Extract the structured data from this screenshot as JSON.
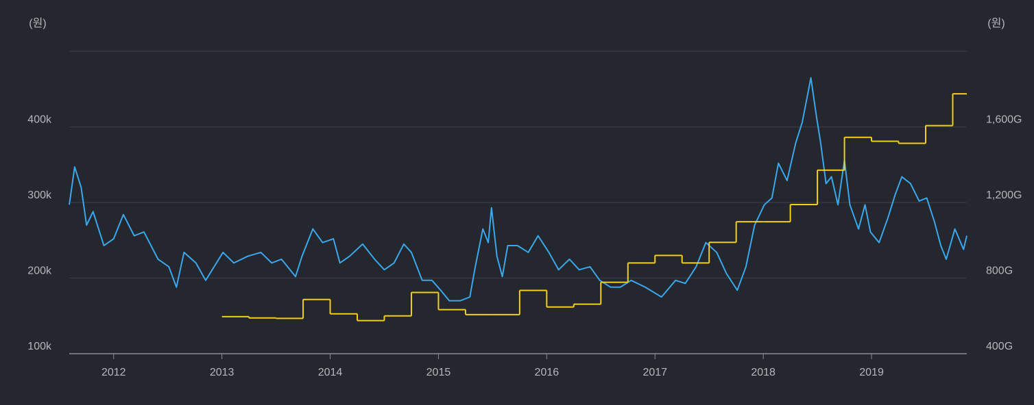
{
  "chart_data": {
    "type": "line",
    "y_label": "(원)",
    "y2_label": "(원)",
    "xlim": [
      2011.59,
      2019.88
    ],
    "xticks": [
      2012,
      2013,
      2014,
      2015,
      2016,
      2017,
      2018,
      2019
    ],
    "ylim": [
      100000,
      500000
    ],
    "yticks": [
      {
        "value": 100000,
        "label": "100k"
      },
      {
        "value": 200000,
        "label": "200k"
      },
      {
        "value": 300000,
        "label": "300k"
      },
      {
        "value": 400000,
        "label": "400k"
      }
    ],
    "y2lim": [
      400,
      2000
    ],
    "y2ticks": [
      {
        "value": 400,
        "label": "400G"
      },
      {
        "value": 800,
        "label": "800G"
      },
      {
        "value": 1200,
        "label": "1,200G"
      },
      {
        "value": 1600,
        "label": "1,600G"
      }
    ],
    "grid": true,
    "series": [
      {
        "color": "#3aa8ee",
        "style": "line",
        "x": [
          2011.59,
          2011.64,
          2011.7,
          2011.75,
          2011.81,
          2011.91,
          2012.0,
          2012.09,
          2012.19,
          2012.28,
          2012.41,
          2012.51,
          2012.58,
          2012.65,
          2012.76,
          2012.85,
          2013.01,
          2013.11,
          2013.24,
          2013.36,
          2013.46,
          2013.55,
          2013.68,
          2013.74,
          2013.84,
          2013.93,
          2014.03,
          2014.09,
          2014.18,
          2014.3,
          2014.41,
          2014.5,
          2014.59,
          2014.68,
          2014.75,
          2014.85,
          2014.94,
          2015.02,
          2015.1,
          2015.2,
          2015.29,
          2015.34,
          2015.41,
          2015.46,
          2015.49,
          2015.54,
          2015.59,
          2015.64,
          2015.73,
          2015.83,
          2015.92,
          2016.02,
          2016.11,
          2016.21,
          2016.3,
          2016.4,
          2016.49,
          2016.59,
          2016.68,
          2016.78,
          2016.91,
          2017.06,
          2017.19,
          2017.28,
          2017.38,
          2017.47,
          2017.57,
          2017.66,
          2017.76,
          2017.84,
          2017.92,
          2018.01,
          2018.08,
          2018.14,
          2018.22,
          2018.3,
          2018.36,
          2018.44,
          2018.49,
          2018.53,
          2018.58,
          2018.63,
          2018.69,
          2018.75,
          2018.8,
          2018.88,
          2018.94,
          2018.99,
          2019.07,
          2019.15,
          2019.22,
          2019.28,
          2019.36,
          2019.44,
          2019.51,
          2019.58,
          2019.64,
          2019.69,
          2019.77,
          2019.85,
          2019.88
        ],
        "values": [
          297000,
          347000,
          320000,
          270000,
          288000,
          243000,
          252000,
          284000,
          256000,
          261000,
          225000,
          215000,
          188000,
          234000,
          220000,
          197000,
          234000,
          220000,
          229000,
          234000,
          220000,
          225000,
          202000,
          229000,
          265000,
          247000,
          252000,
          220000,
          229000,
          245000,
          225000,
          211000,
          220000,
          245000,
          234000,
          197000,
          197000,
          184000,
          170000,
          170000,
          175000,
          215000,
          265000,
          247000,
          293000,
          229000,
          202000,
          243000,
          243000,
          234000,
          256000,
          234000,
          211000,
          225000,
          211000,
          215000,
          197000,
          188000,
          188000,
          197000,
          188000,
          175000,
          197000,
          193000,
          215000,
          247000,
          234000,
          206000,
          184000,
          215000,
          270000,
          297000,
          306000,
          352000,
          329000,
          379000,
          406000,
          465000,
          415000,
          379000,
          325000,
          334000,
          297000,
          356000,
          297000,
          265000,
          297000,
          261000,
          247000,
          279000,
          311000,
          334000,
          325000,
          302000,
          306000,
          275000,
          243000,
          225000,
          265000,
          238000,
          256000
        ]
      },
      {
        "color": "#f2d01c",
        "style": "step",
        "axis": "y2",
        "x": [
          2013.0,
          2013.25,
          2013.5,
          2013.75,
          2014.0,
          2014.25,
          2014.5,
          2014.75,
          2015.0,
          2015.25,
          2015.5,
          2015.75,
          2016.0,
          2016.25,
          2016.5,
          2016.75,
          2017.0,
          2017.25,
          2017.5,
          2017.75,
          2018.0,
          2018.25,
          2018.5,
          2018.75,
          2019.0,
          2019.25,
          2019.5,
          2019.75
        ],
        "values": [
          596,
          589,
          587,
          687,
          611,
          575,
          600,
          724,
          633,
          607,
          607,
          735,
          647,
          662,
          778,
          880,
          920,
          880,
          989,
          1098,
          1098,
          1189,
          1371,
          1545,
          1524,
          1513,
          1607,
          1775
        ]
      }
    ]
  }
}
